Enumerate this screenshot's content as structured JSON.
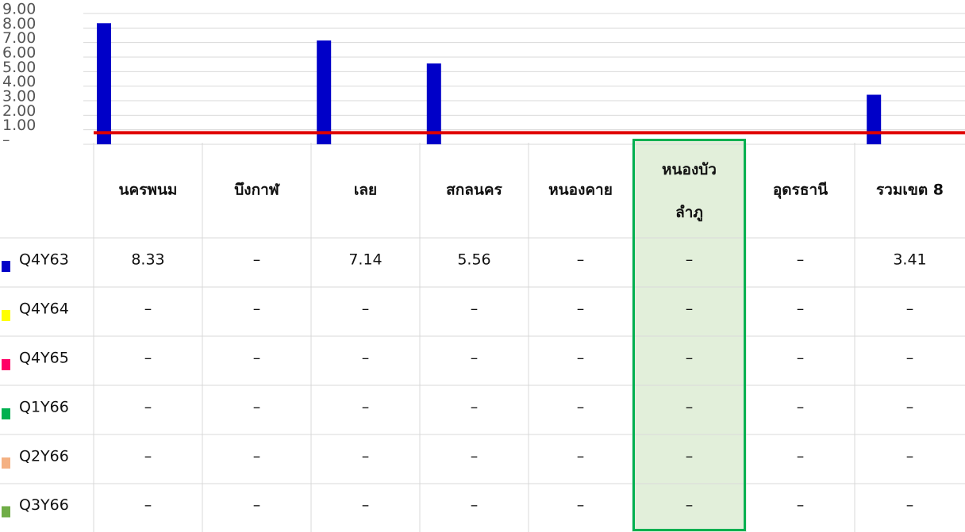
{
  "chart_data": {
    "type": "bar",
    "categories": [
      "นครพนม",
      "บึงกาฬ",
      "เลย",
      "สกลนคร",
      "หนองคาย",
      "หนองบัว\nลำภู",
      "อุดรธานี",
      "รวมเขต 8"
    ],
    "series": [
      {
        "name": "Q4Y63",
        "color": "#0000c8",
        "values": [
          8.33,
          null,
          7.14,
          5.56,
          null,
          null,
          null,
          3.41
        ],
        "value_labels": [
          "8.33",
          "–",
          "7.14",
          "5.56",
          "–",
          "–",
          "–",
          "3.41"
        ]
      },
      {
        "name": "Q4Y64",
        "color": "#ffff00",
        "values": [
          null,
          null,
          null,
          null,
          null,
          null,
          null,
          null
        ],
        "value_labels": [
          "–",
          "–",
          "–",
          "–",
          "–",
          "–",
          "–",
          "–"
        ]
      },
      {
        "name": "Q4Y65",
        "color": "#ff0066",
        "values": [
          null,
          null,
          null,
          null,
          null,
          null,
          null,
          null
        ],
        "value_labels": [
          "–",
          "–",
          "–",
          "–",
          "–",
          "–",
          "–",
          "–"
        ]
      },
      {
        "name": "Q1Y66",
        "color": "#00b050",
        "values": [
          null,
          null,
          null,
          null,
          null,
          null,
          null,
          null
        ],
        "value_labels": [
          "–",
          "–",
          "–",
          "–",
          "–",
          "–",
          "–",
          "–"
        ]
      },
      {
        "name": "Q2Y66",
        "color": "#f4b183",
        "values": [
          null,
          null,
          null,
          null,
          null,
          null,
          null,
          null
        ],
        "value_labels": [
          "–",
          "–",
          "–",
          "–",
          "–",
          "–",
          "–",
          "–"
        ]
      },
      {
        "name": "Q3Y66",
        "color": "#70ad47",
        "values": [
          null,
          null,
          null,
          null,
          null,
          null,
          null,
          null
        ],
        "value_labels": [
          "–",
          "–",
          "–",
          "–",
          "–",
          "–",
          "–",
          "–"
        ]
      }
    ],
    "ylim": [
      0,
      9
    ],
    "yticks": [
      {
        "value": 0,
        "label": "–"
      },
      {
        "value": 1,
        "label": "1.00"
      },
      {
        "value": 2,
        "label": "2.00"
      },
      {
        "value": 3,
        "label": "3.00"
      },
      {
        "value": 4,
        "label": "4.00"
      },
      {
        "value": 5,
        "label": "5.00"
      },
      {
        "value": 6,
        "label": "6.00"
      },
      {
        "value": 7,
        "label": "7.00"
      },
      {
        "value": 8,
        "label": "8.00"
      },
      {
        "value": 9,
        "label": "9.00"
      }
    ],
    "grid": true,
    "reference_line": {
      "value": 0.8,
      "color": "#e00000"
    },
    "highlight_index": 5
  }
}
